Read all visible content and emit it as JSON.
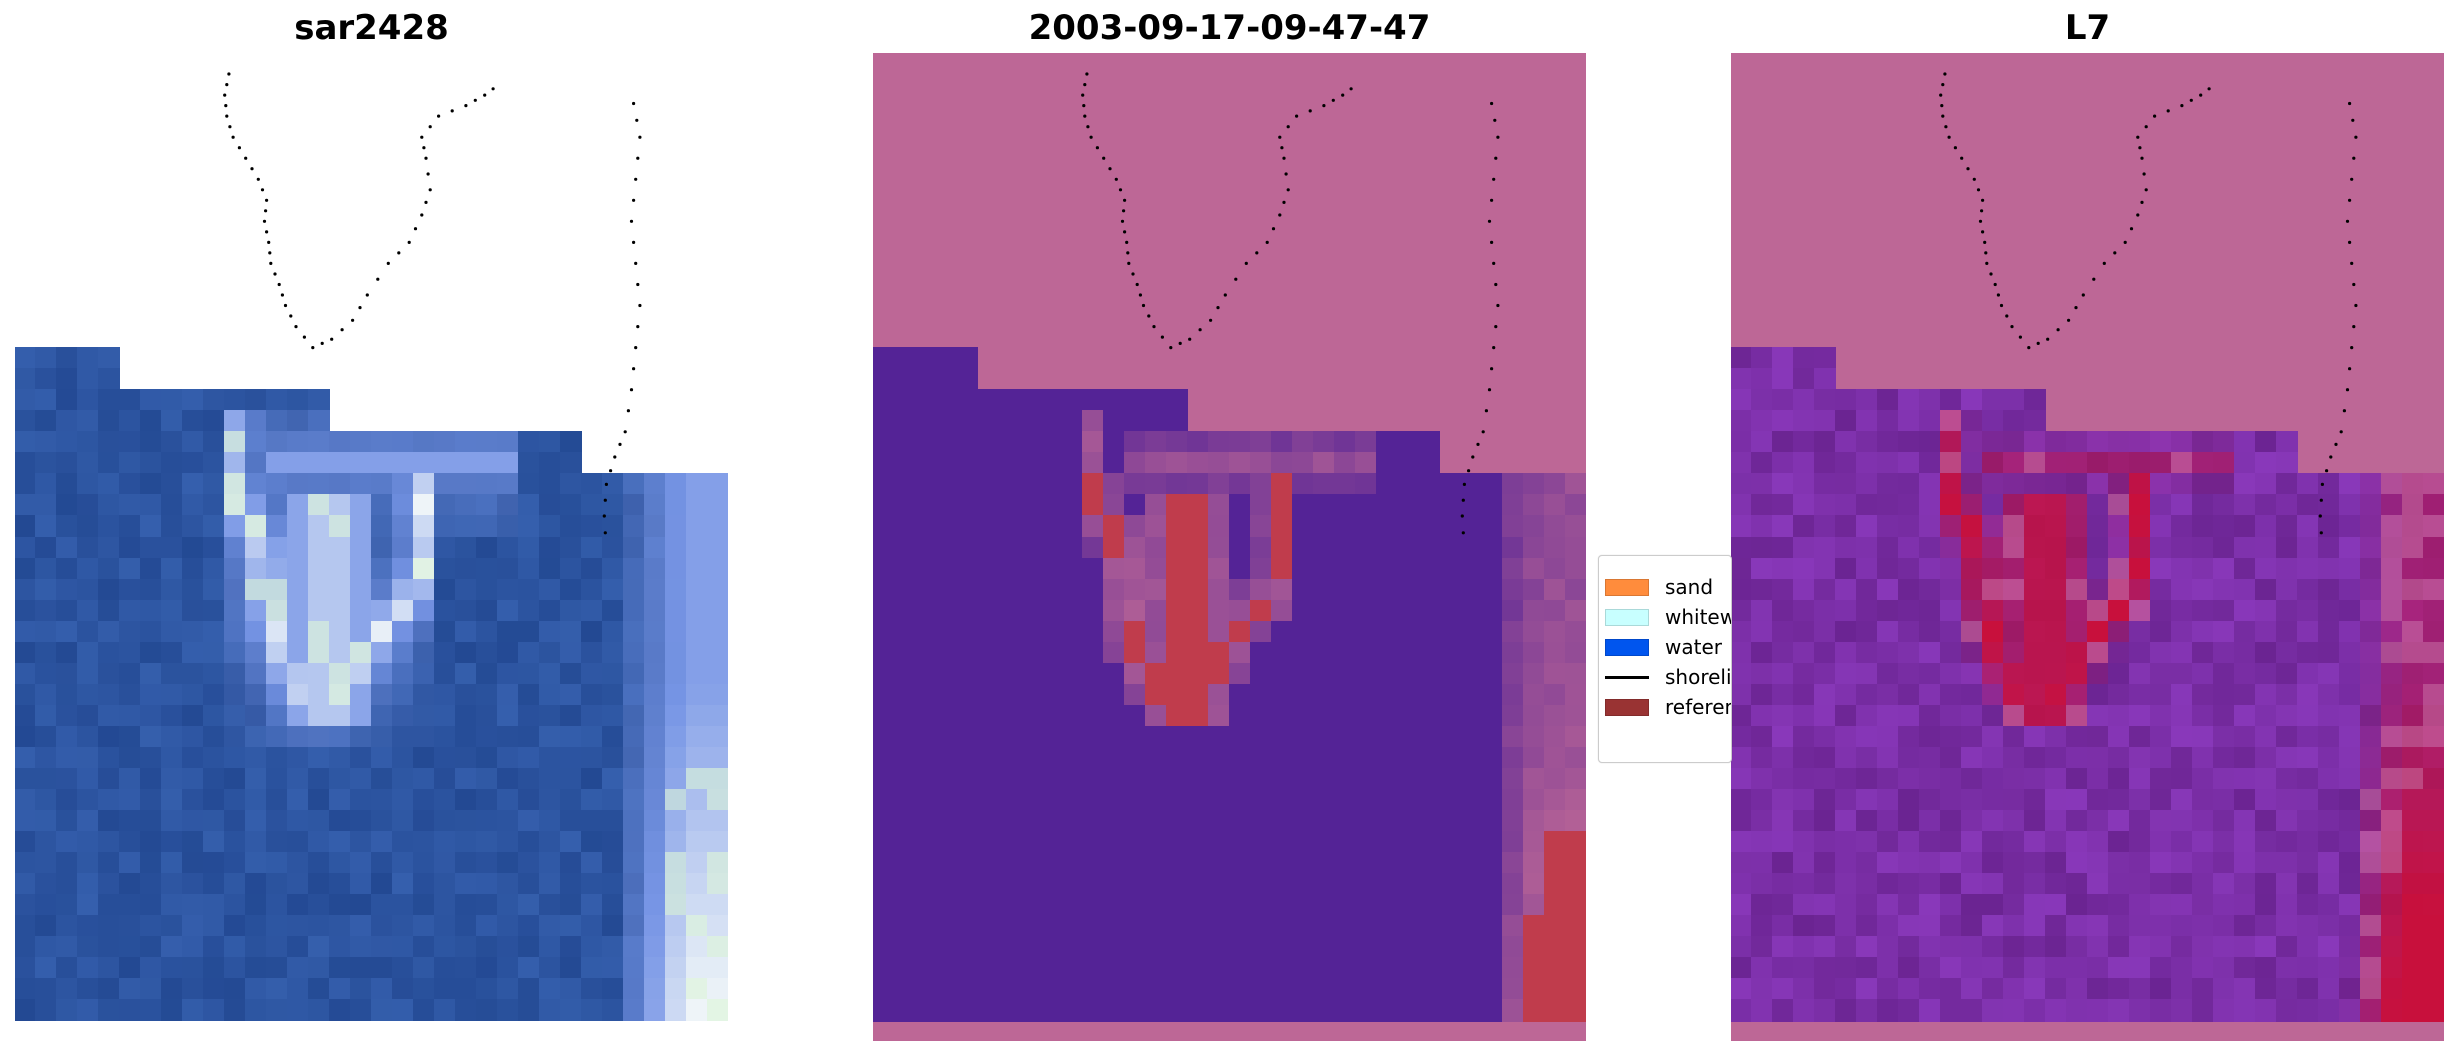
{
  "panels": [
    {
      "title": "sar2428"
    },
    {
      "title": "2003-09-17-09-47-47"
    },
    {
      "title": "L7"
    }
  ],
  "legend": {
    "items": [
      {
        "label": "sand",
        "color": "#ff8c3c",
        "kind": "patch"
      },
      {
        "label": "whitewater",
        "color": "#c8ffff",
        "kind": "patch"
      },
      {
        "label": "water",
        "color": "#0055ee",
        "kind": "patch"
      },
      {
        "label": "shoreline",
        "color": "#000000",
        "kind": "line"
      },
      {
        "label": "reference shoreline",
        "color": "#993333",
        "kind": "patch"
      }
    ]
  },
  "colors": {
    "background_unknown": "#bd6796",
    "water_class": "#542396",
    "sand_class": "#c03c4c",
    "rgb_water": "#2c54a0",
    "index_water": "#7a2ea6",
    "index_sand": "#c8103c"
  }
}
